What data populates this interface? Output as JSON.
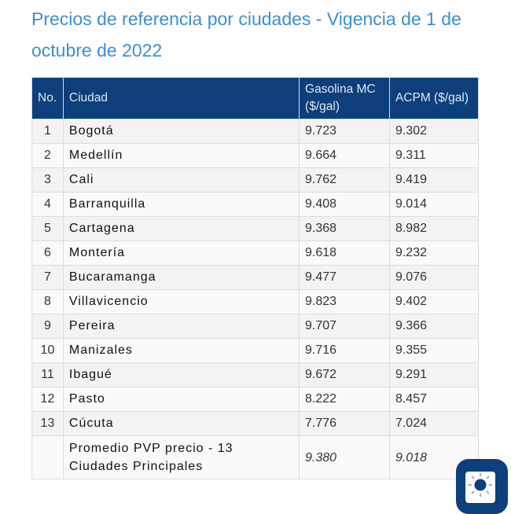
{
  "title": "Precios de referencia por ciudades - Vigencia de 1 de octubre de 2022",
  "table": {
    "headers": {
      "no": "No.",
      "city": "Ciudad",
      "gas": "Gasolina MC ($/gal)",
      "acpm": "ACPM ($/gal)"
    },
    "rows": [
      {
        "no": "1",
        "city": "Bogotá",
        "gas": "9.723",
        "acpm": "9.302"
      },
      {
        "no": "2",
        "city": "Medellín",
        "gas": "9.664",
        "acpm": "9.311"
      },
      {
        "no": "3",
        "city": "Cali",
        "gas": "9.762",
        "acpm": "9.419"
      },
      {
        "no": "4",
        "city": "Barranquilla",
        "gas": "9.408",
        "acpm": "9.014"
      },
      {
        "no": "5",
        "city": "Cartagena",
        "gas": "9.368",
        "acpm": "8.982"
      },
      {
        "no": "6",
        "city": "Montería",
        "gas": "9.618",
        "acpm": "9.232"
      },
      {
        "no": "7",
        "city": "Bucaramanga",
        "gas": "9.477",
        "acpm": "9.076"
      },
      {
        "no": "8",
        "city": "Villavicencio",
        "gas": "9.823",
        "acpm": "9.402"
      },
      {
        "no": "9",
        "city": "Pereira",
        "gas": "9.707",
        "acpm": "9.366"
      },
      {
        "no": "10",
        "city": "Manizales",
        "gas": "9.716",
        "acpm": "9.355"
      },
      {
        "no": "11",
        "city": "Ibagué",
        "gas": "9.672",
        "acpm": "9.291"
      },
      {
        "no": "12",
        "city": "Pasto",
        "gas": "8.222",
        "acpm": "8.457"
      },
      {
        "no": "13",
        "city": "Cúcuta",
        "gas": "7.776",
        "acpm": "7.024"
      }
    ],
    "summary": {
      "label": "Promedio PVP precio - 13 Ciudades Principales",
      "gas": "9.380",
      "acpm": "9.018"
    }
  },
  "fab": {
    "icon": "sun-icon"
  },
  "colors": {
    "header": "#0c3f7b",
    "title": "#3e8fd1"
  }
}
